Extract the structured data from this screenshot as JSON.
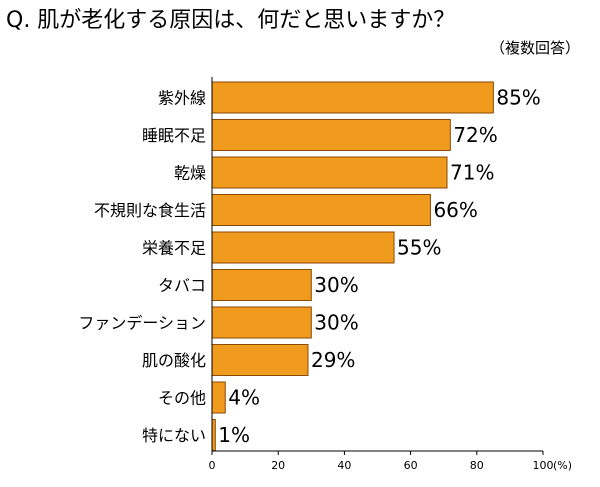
{
  "header": {
    "title": "Q. 肌が老化する原因は、何だと思いますか？",
    "subtitle": "（複数回答）"
  },
  "chart_data": {
    "type": "bar",
    "orientation": "horizontal",
    "categories": [
      "紫外線",
      "睡眠不足",
      "乾燥",
      "不規則な食生活",
      "栄養不足",
      "タバコ",
      "ファンデーション",
      "肌の酸化",
      "その他",
      "特にない"
    ],
    "values": [
      85,
      72,
      71,
      66,
      55,
      30,
      30,
      29,
      4,
      1
    ],
    "value_labels": [
      "85%",
      "72%",
      "71%",
      "66%",
      "55%",
      "30%",
      "30%",
      "29%",
      "4%",
      "1%"
    ],
    "xlim": [
      0,
      100
    ],
    "xticks": [
      0,
      20,
      40,
      60,
      80,
      100
    ],
    "x_unit": "(%)",
    "bar_color": "#f09a1e",
    "bar_edge_color": "#8a4a00",
    "grid": false
  }
}
